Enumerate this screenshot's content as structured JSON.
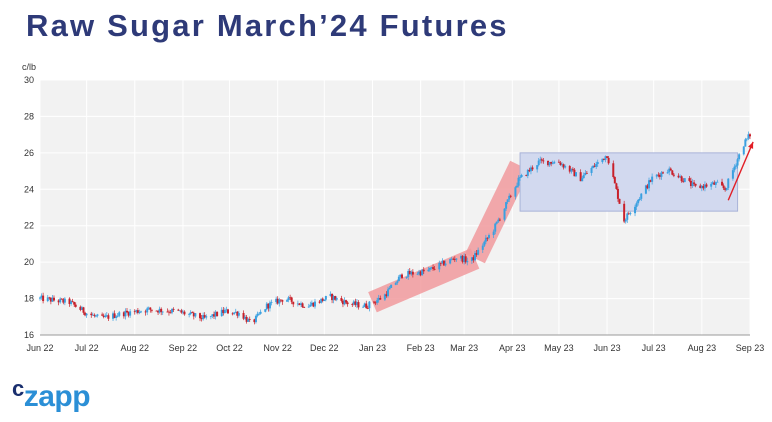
{
  "title": "Raw Sugar March’24 Futures",
  "logo": {
    "c": "c",
    "rest": "zapp"
  },
  "colors": {
    "title": "#2e3a78",
    "up": "#3aa0e0",
    "down": "#c8202a",
    "trend_band": "#f19a9e",
    "range_box": "#d2d9ef",
    "range_border": "#a9b3d8",
    "arrow": "#e21f26",
    "plot_bg": "#f2f2f2",
    "grid": "#ffffff"
  },
  "chart_data": {
    "type": "candlestick",
    "title": "Raw Sugar March’24 Futures",
    "ylabel": "c/lb",
    "ylim": [
      16,
      30
    ],
    "yticks": [
      16,
      18,
      20,
      22,
      24,
      26,
      28,
      30
    ],
    "xlim": [
      "2022-06-01",
      "2023-09-01"
    ],
    "xticks": [
      {
        "date": "2022-06-01",
        "label": "Jun 22"
      },
      {
        "date": "2022-07-01",
        "label": "Jul 22"
      },
      {
        "date": "2022-08-01",
        "label": "Aug 22"
      },
      {
        "date": "2022-09-01",
        "label": "Sep 22"
      },
      {
        "date": "2022-10-01",
        "label": "Oct 22"
      },
      {
        "date": "2022-11-01",
        "label": "Nov 22"
      },
      {
        "date": "2022-12-01",
        "label": "Dec 22"
      },
      {
        "date": "2023-01-01",
        "label": "Jan 23"
      },
      {
        "date": "2023-02-01",
        "label": "Feb 23"
      },
      {
        "date": "2023-03-01",
        "label": "Mar 23"
      },
      {
        "date": "2023-04-01",
        "label": "Apr 23"
      },
      {
        "date": "2023-05-01",
        "label": "May 23"
      },
      {
        "date": "2023-06-01",
        "label": "Jun 23"
      },
      {
        "date": "2023-07-01",
        "label": "Jul 23"
      },
      {
        "date": "2023-08-01",
        "label": "Aug 23"
      },
      {
        "date": "2023-09-01",
        "label": "Sep 23"
      }
    ],
    "grid": true,
    "closing_price_path": [
      {
        "date": "2022-06-01",
        "value": 18.0
      },
      {
        "date": "2022-06-20",
        "value": 17.8
      },
      {
        "date": "2022-07-01",
        "value": 17.2
      },
      {
        "date": "2022-07-10",
        "value": 16.9
      },
      {
        "date": "2022-07-25",
        "value": 17.2
      },
      {
        "date": "2022-08-10",
        "value": 17.4
      },
      {
        "date": "2022-08-28",
        "value": 17.3
      },
      {
        "date": "2022-09-15",
        "value": 16.9
      },
      {
        "date": "2022-09-28",
        "value": 17.3
      },
      {
        "date": "2022-10-08",
        "value": 17.2
      },
      {
        "date": "2022-10-15",
        "value": 16.6
      },
      {
        "date": "2022-10-25",
        "value": 17.6
      },
      {
        "date": "2022-11-05",
        "value": 18.0
      },
      {
        "date": "2022-11-20",
        "value": 17.6
      },
      {
        "date": "2022-12-05",
        "value": 18.1
      },
      {
        "date": "2022-12-18",
        "value": 17.7
      },
      {
        "date": "2022-12-28",
        "value": 17.6
      },
      {
        "date": "2023-01-08",
        "value": 18.1
      },
      {
        "date": "2023-01-20",
        "value": 19.3
      },
      {
        "date": "2023-02-05",
        "value": 19.5
      },
      {
        "date": "2023-02-25",
        "value": 20.3
      },
      {
        "date": "2023-03-05",
        "value": 20.0
      },
      {
        "date": "2023-03-20",
        "value": 21.8
      },
      {
        "date": "2023-04-05",
        "value": 24.5
      },
      {
        "date": "2023-04-18",
        "value": 25.5
      },
      {
        "date": "2023-05-01",
        "value": 25.5
      },
      {
        "date": "2023-05-15",
        "value": 24.6
      },
      {
        "date": "2023-06-01",
        "value": 25.9
      },
      {
        "date": "2023-06-12",
        "value": 22.3
      },
      {
        "date": "2023-06-30",
        "value": 24.6
      },
      {
        "date": "2023-07-10",
        "value": 25.1
      },
      {
        "date": "2023-07-28",
        "value": 24.1
      },
      {
        "date": "2023-08-10",
        "value": 24.3
      },
      {
        "date": "2023-08-16",
        "value": 24.0
      },
      {
        "date": "2023-08-28",
        "value": 26.5
      },
      {
        "date": "2023-09-01",
        "value": 27.0
      }
    ],
    "annotations": [
      {
        "kind": "uptrend-band",
        "from": {
          "date": "2023-01-01",
          "value": 17.8
        },
        "to": {
          "date": "2023-03-08",
          "value": 20.2
        }
      },
      {
        "kind": "uptrend-band",
        "from": {
          "date": "2023-03-08",
          "value": 20.2
        },
        "to": {
          "date": "2023-04-06",
          "value": 25.3
        }
      },
      {
        "kind": "range-box",
        "from": "2023-04-06",
        "to": "2023-08-24",
        "low": 22.8,
        "high": 26.0
      },
      {
        "kind": "arrow",
        "from": {
          "date": "2023-08-18",
          "value": 23.4
        },
        "to": {
          "date": "2023-09-03",
          "value": 26.6
        }
      }
    ]
  }
}
